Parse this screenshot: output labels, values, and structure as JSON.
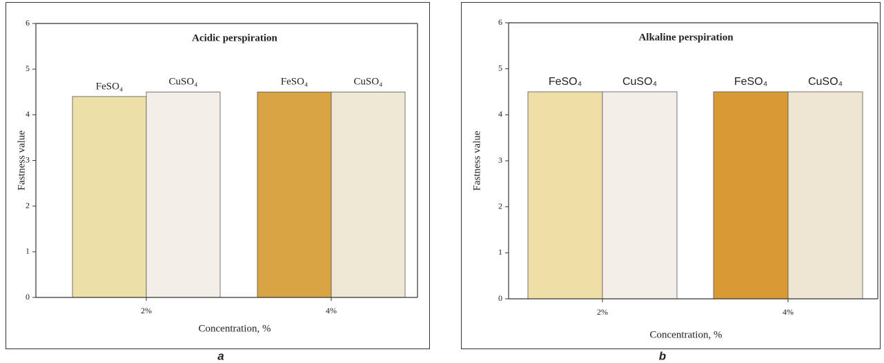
{
  "chart_data": [
    {
      "type": "bar",
      "panel": "a",
      "title": "Acidic perspiration",
      "x_label": "Concentration, %",
      "y_label": "Fastness value",
      "categories": [
        "2%",
        "4%"
      ],
      "series": [
        {
          "name": "FeSO₄",
          "colors": [
            "#eddfa8",
            "#d9a443"
          ],
          "values": [
            4.4,
            4.5
          ]
        },
        {
          "name": "CuSO₄",
          "colors": [
            "#f4eee8",
            "#eee7d3"
          ],
          "values": [
            4.5,
            4.5
          ]
        }
      ],
      "ylim": [
        0,
        6
      ],
      "yticks": [
        0,
        1,
        2,
        3,
        4,
        5,
        6
      ]
    },
    {
      "type": "bar",
      "panel": "b",
      "title": "Alkaline perspiration",
      "x_label": "Concentration, %",
      "y_label": "Fastness value",
      "categories": [
        "2%",
        "4%"
      ],
      "series": [
        {
          "name": "FeSO₄",
          "colors": [
            "#eedfa6",
            "#d99a35"
          ],
          "values": [
            4.5,
            4.5
          ]
        },
        {
          "name": "CuSO₄",
          "colors": [
            "#f3eee8",
            "#eee6d2"
          ],
          "values": [
            4.5,
            4.5
          ]
        }
      ],
      "ylim": [
        0,
        6
      ],
      "yticks": [
        0,
        1,
        2,
        3,
        4,
        5,
        6
      ]
    }
  ]
}
